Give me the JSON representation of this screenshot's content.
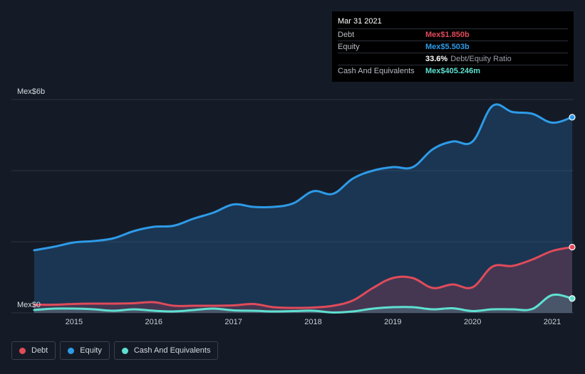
{
  "tooltip": {
    "date": "Mar 31 2021",
    "debt_label": "Debt",
    "debt_value": "Mex$1.850b",
    "equity_label": "Equity",
    "equity_value": "Mex$5.503b",
    "ratio_value": "33.6%",
    "ratio_label": "Debt/Equity Ratio",
    "cash_label": "Cash And Equivalents",
    "cash_value": "Mex$405.246m"
  },
  "legend": [
    {
      "label": "Debt",
      "color": "#e04b5a"
    },
    {
      "label": "Equity",
      "color": "#2e9be8"
    },
    {
      "label": "Cash And Equivalents",
      "color": "#5fe0d0"
    }
  ],
  "chart_data": {
    "type": "area",
    "title": "",
    "xlabel": "",
    "ylabel": "",
    "y_top_label": "Mex$6b",
    "y_bottom_label": "Mex$0",
    "ylim": [
      0,
      6
    ],
    "xlim": [
      2014.5,
      2021.25
    ],
    "x_ticks": [
      "2015",
      "2016",
      "2017",
      "2018",
      "2019",
      "2020",
      "2021"
    ],
    "series": [
      {
        "name": "Equity",
        "color": "#2e9be8",
        "points": [
          [
            2014.5,
            1.76
          ],
          [
            2014.75,
            1.86
          ],
          [
            2015.0,
            1.98
          ],
          [
            2015.25,
            2.02
          ],
          [
            2015.5,
            2.1
          ],
          [
            2015.75,
            2.3
          ],
          [
            2016.0,
            2.42
          ],
          [
            2016.25,
            2.45
          ],
          [
            2016.5,
            2.65
          ],
          [
            2016.75,
            2.82
          ],
          [
            2017.0,
            3.05
          ],
          [
            2017.25,
            2.98
          ],
          [
            2017.5,
            2.98
          ],
          [
            2017.75,
            3.08
          ],
          [
            2018.0,
            3.42
          ],
          [
            2018.25,
            3.35
          ],
          [
            2018.5,
            3.78
          ],
          [
            2018.75,
            4.0
          ],
          [
            2019.0,
            4.1
          ],
          [
            2019.25,
            4.1
          ],
          [
            2019.5,
            4.6
          ],
          [
            2019.75,
            4.82
          ],
          [
            2020.0,
            4.82
          ],
          [
            2020.25,
            5.82
          ],
          [
            2020.5,
            5.65
          ],
          [
            2020.75,
            5.6
          ],
          [
            2021.0,
            5.35
          ],
          [
            2021.25,
            5.503
          ]
        ]
      },
      {
        "name": "Debt",
        "color": "#e04b5a",
        "points": [
          [
            2014.5,
            0.23
          ],
          [
            2014.75,
            0.23
          ],
          [
            2015.0,
            0.25
          ],
          [
            2015.25,
            0.26
          ],
          [
            2015.5,
            0.26
          ],
          [
            2015.75,
            0.27
          ],
          [
            2016.0,
            0.3
          ],
          [
            2016.25,
            0.2
          ],
          [
            2016.5,
            0.2
          ],
          [
            2016.75,
            0.2
          ],
          [
            2017.0,
            0.21
          ],
          [
            2017.25,
            0.25
          ],
          [
            2017.5,
            0.16
          ],
          [
            2017.75,
            0.14
          ],
          [
            2018.0,
            0.15
          ],
          [
            2018.25,
            0.2
          ],
          [
            2018.5,
            0.35
          ],
          [
            2018.75,
            0.7
          ],
          [
            2019.0,
            0.98
          ],
          [
            2019.25,
            0.98
          ],
          [
            2019.5,
            0.7
          ],
          [
            2019.75,
            0.8
          ],
          [
            2020.0,
            0.72
          ],
          [
            2020.25,
            1.3
          ],
          [
            2020.5,
            1.32
          ],
          [
            2020.75,
            1.5
          ],
          [
            2021.0,
            1.74
          ],
          [
            2021.25,
            1.85
          ]
        ]
      },
      {
        "name": "Cash And Equivalents",
        "color": "#5fe0d0",
        "points": [
          [
            2014.5,
            0.08
          ],
          [
            2014.75,
            0.12
          ],
          [
            2015.0,
            0.12
          ],
          [
            2015.25,
            0.1
          ],
          [
            2015.5,
            0.06
          ],
          [
            2015.75,
            0.1
          ],
          [
            2016.0,
            0.06
          ],
          [
            2016.25,
            0.04
          ],
          [
            2016.5,
            0.08
          ],
          [
            2016.75,
            0.12
          ],
          [
            2017.0,
            0.07
          ],
          [
            2017.25,
            0.06
          ],
          [
            2017.5,
            0.04
          ],
          [
            2017.75,
            0.05
          ],
          [
            2018.0,
            0.06
          ],
          [
            2018.25,
            0.01
          ],
          [
            2018.5,
            0.04
          ],
          [
            2018.75,
            0.12
          ],
          [
            2019.0,
            0.16
          ],
          [
            2019.25,
            0.16
          ],
          [
            2019.5,
            0.1
          ],
          [
            2019.75,
            0.13
          ],
          [
            2020.0,
            0.05
          ],
          [
            2020.25,
            0.1
          ],
          [
            2020.5,
            0.1
          ],
          [
            2020.75,
            0.11
          ],
          [
            2021.0,
            0.5
          ],
          [
            2021.25,
            0.405
          ]
        ]
      }
    ]
  }
}
